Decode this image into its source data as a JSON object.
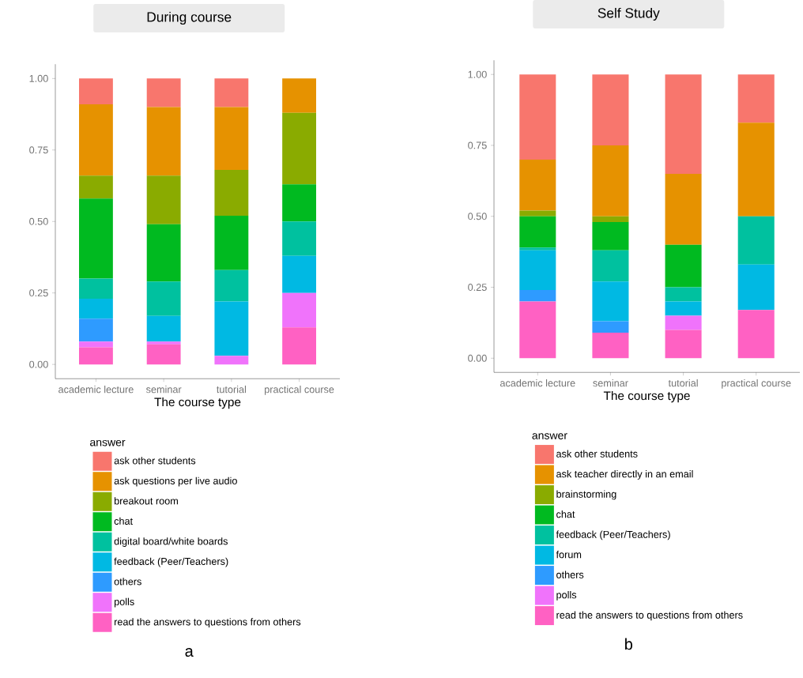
{
  "chart_data": [
    {
      "type": "bar",
      "stacked": true,
      "title": "During course",
      "xlabel": "The course type",
      "legend_title": "answer",
      "legend": "bottom",
      "grid": false,
      "categories": [
        "academic lecture",
        "seminar",
        "tutorial",
        "practical course"
      ],
      "ylim": [
        -0.05,
        1.05
      ],
      "yticks": [
        {
          "value": 0,
          "label": "0.00"
        },
        {
          "value": 0.25,
          "label": "0.25"
        },
        {
          "value": 0.5,
          "label": "0.50"
        },
        {
          "value": 0.75,
          "label": "0.75"
        },
        {
          "value": 1,
          "label": "1.00"
        }
      ],
      "series": [
        {
          "name": "read the answers to questions from others",
          "color": "#ff61c3",
          "values": [
            0.06,
            0.07,
            0,
            0.13
          ]
        },
        {
          "name": "polls",
          "color": "#f073fb",
          "values": [
            0.02,
            0.01,
            0.03,
            0.12
          ]
        },
        {
          "name": "others",
          "color": "#2e9bff",
          "values": [
            0.08,
            0,
            0,
            0
          ]
        },
        {
          "name": "feedback (Peer/Teachers)",
          "color": "#00b9e3",
          "values": [
            0.07,
            0.09,
            0.19,
            0.13
          ]
        },
        {
          "name": "digital board/white boards",
          "color": "#00c19f",
          "values": [
            0.07,
            0.12,
            0.11,
            0.12
          ]
        },
        {
          "name": "chat",
          "color": "#00ba20",
          "values": [
            0.28,
            0.2,
            0.19,
            0.13
          ]
        },
        {
          "name": "breakout room",
          "color": "#8aab00",
          "values": [
            0.08,
            0.17,
            0.16,
            0.25
          ]
        },
        {
          "name": "ask questions per live audio",
          "color": "#e69200",
          "values": [
            0.25,
            0.24,
            0.22,
            0.12
          ]
        },
        {
          "name": "ask other students",
          "color": "#f8766d",
          "values": [
            0.09,
            0.1,
            0.1,
            0
          ]
        }
      ],
      "annotations": [
        "a"
      ]
    },
    {
      "type": "bar",
      "stacked": true,
      "title": "Self Study",
      "xlabel": "The course type",
      "legend_title": "answer",
      "legend": "bottom",
      "grid": false,
      "categories": [
        "academic lecture",
        "seminar",
        "tutorial",
        "practical course"
      ],
      "ylim": [
        -0.05,
        1.05
      ],
      "yticks": [
        {
          "value": 0,
          "label": "0.00"
        },
        {
          "value": 0.25,
          "label": "0.25"
        },
        {
          "value": 0.5,
          "label": "0.50"
        },
        {
          "value": 0.75,
          "label": "0.75"
        },
        {
          "value": 1,
          "label": "1.00"
        }
      ],
      "series": [
        {
          "name": "read the answers to questions from others",
          "color": "#ff61c3",
          "values": [
            0.2,
            0.09,
            0.1,
            0.17
          ]
        },
        {
          "name": "polls",
          "color": "#f073fb",
          "values": [
            0,
            0,
            0.05,
            0
          ]
        },
        {
          "name": "others",
          "color": "#2e9bff",
          "values": [
            0.04,
            0.04,
            0,
            0
          ]
        },
        {
          "name": "forum",
          "color": "#00b9e3",
          "values": [
            0.14,
            0.14,
            0.05,
            0.16
          ]
        },
        {
          "name": "feedback (Peer/Teachers)",
          "color": "#00c19f",
          "values": [
            0.01,
            0.11,
            0.05,
            0.17
          ]
        },
        {
          "name": "chat",
          "color": "#00ba20",
          "values": [
            0.11,
            0.1,
            0.15,
            0
          ]
        },
        {
          "name": "brainstorming",
          "color": "#8aab00",
          "values": [
            0.02,
            0.02,
            0,
            0
          ]
        },
        {
          "name": "ask teacher directly in an email",
          "color": "#e69200",
          "values": [
            0.18,
            0.25,
            0.25,
            0.33
          ]
        },
        {
          "name": "ask other students",
          "color": "#f8766d",
          "values": [
            0.3,
            0.25,
            0.35,
            0.17
          ]
        }
      ],
      "annotations": [
        "b"
      ]
    }
  ]
}
